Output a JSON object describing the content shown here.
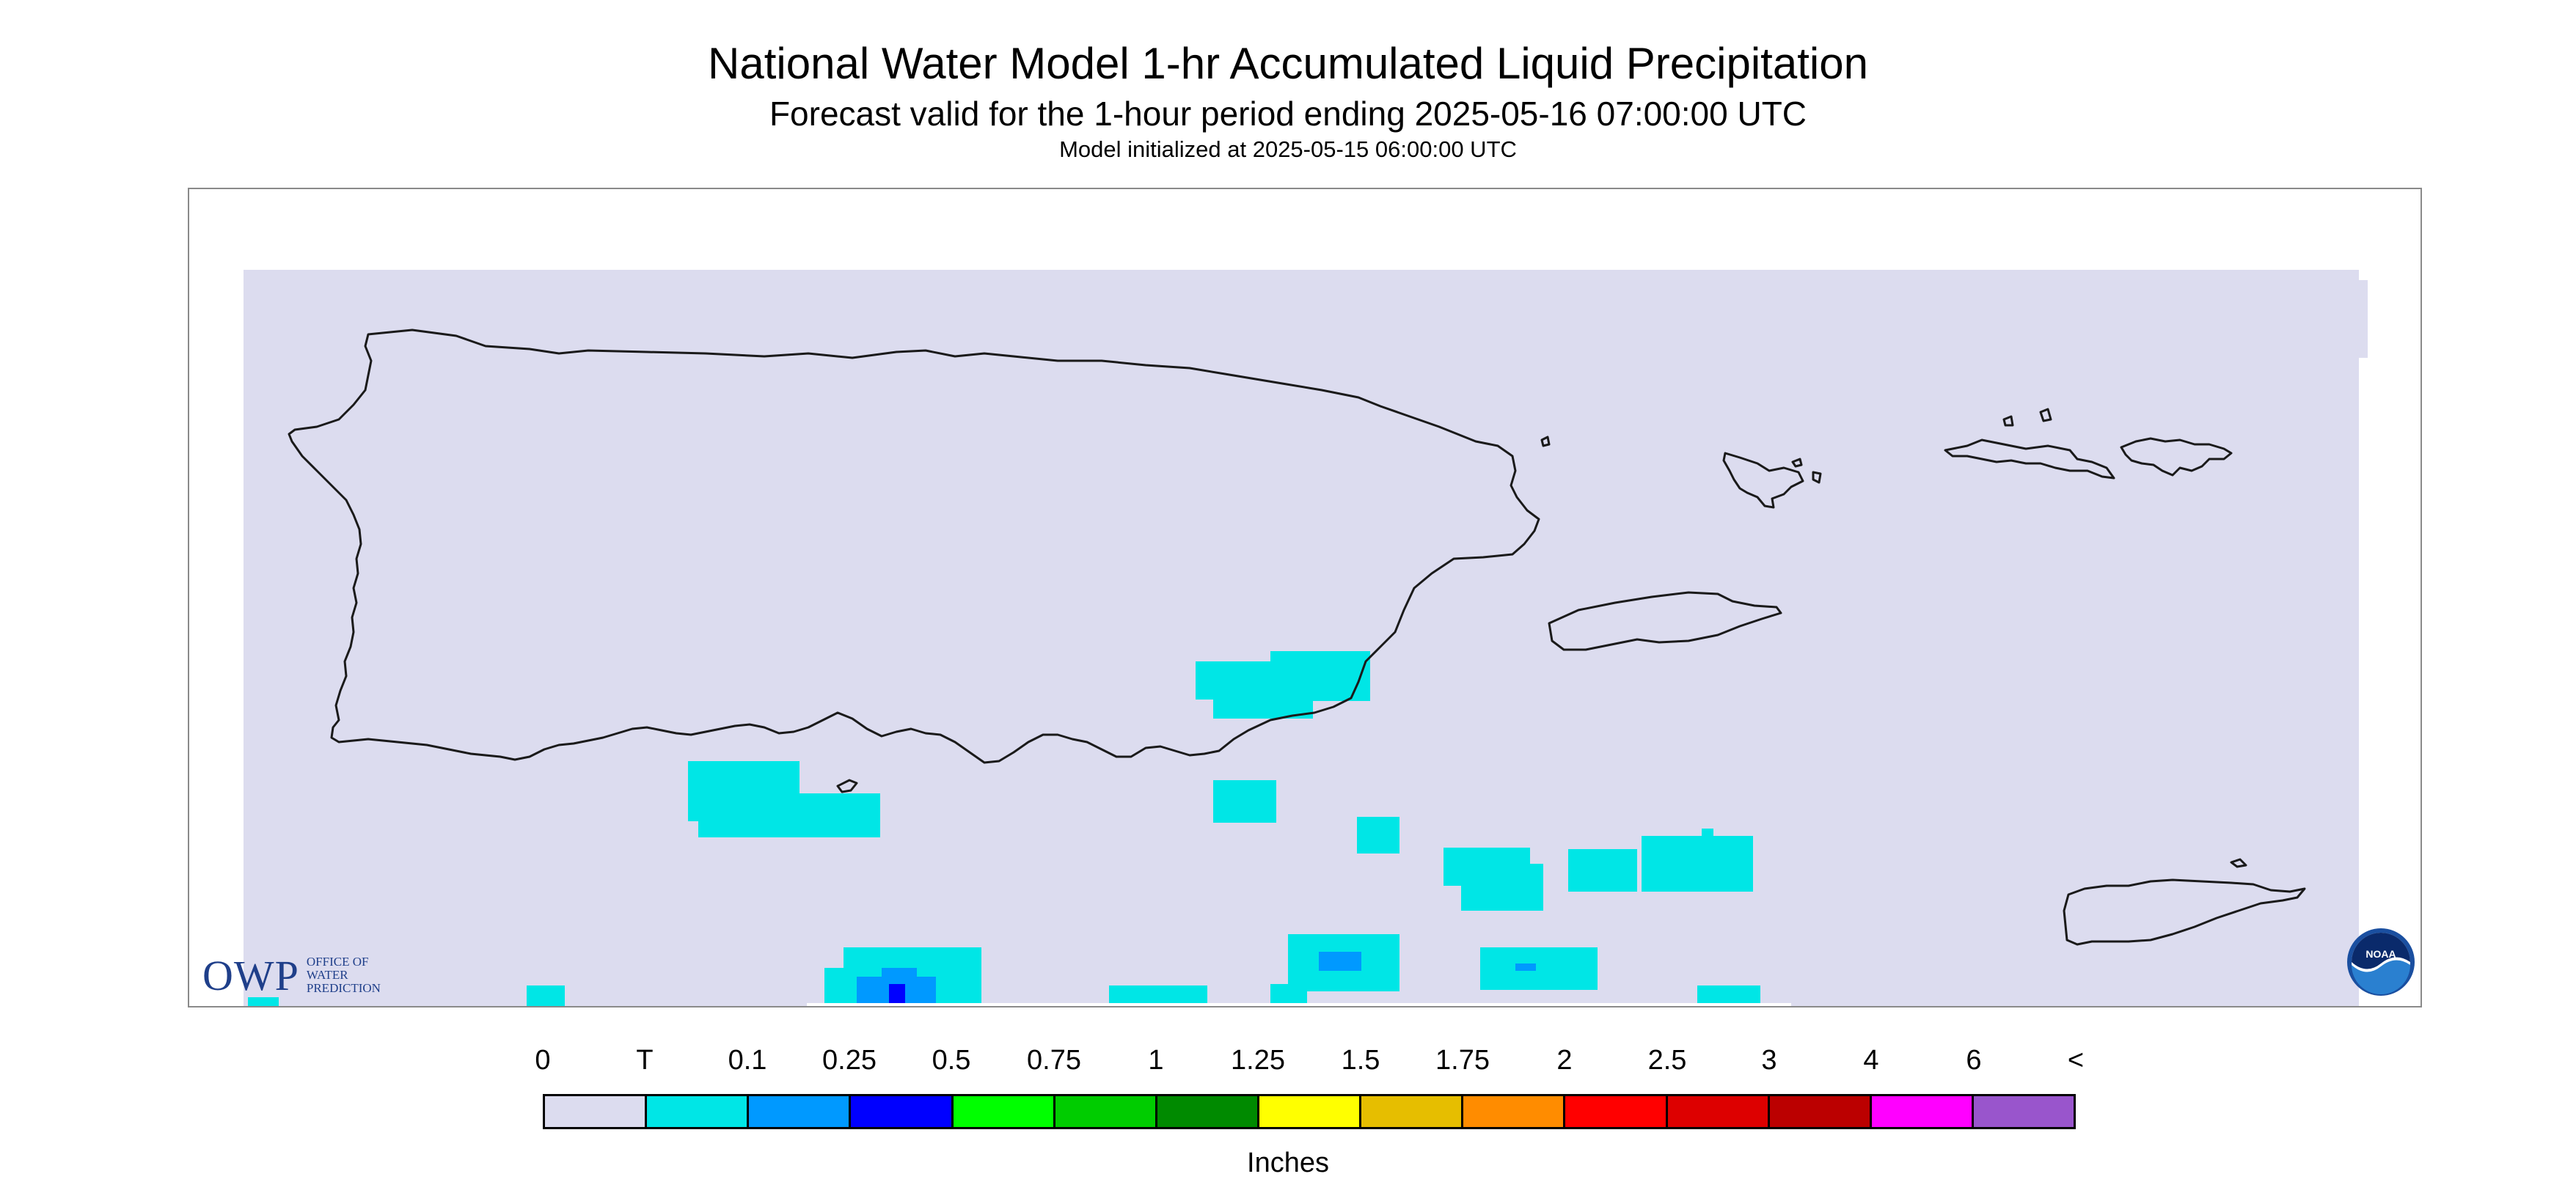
{
  "header": {
    "title": "National Water Model 1-hr Accumulated Liquid Precipitation",
    "subtitle": "Forecast valid for the 1-hour period ending 2025-05-16 07:00:00 UTC",
    "init": "Model initialized at 2025-05-15 06:00:00 UTC"
  },
  "logos": {
    "owp_letters": "OWP",
    "owp_name": [
      "OFFICE OF",
      "WATER",
      "PREDICTION"
    ],
    "noaa_letters": "NOAA"
  },
  "colors": {
    "background": "#dcdcef",
    "coastline": "#1a1a1a"
  },
  "legend": {
    "title": "Inches",
    "labels": [
      "0",
      "T",
      "0.1",
      "0.25",
      "0.5",
      "0.75",
      "1",
      "1.25",
      "1.5",
      "1.75",
      "2",
      "2.5",
      "3",
      "4",
      "6",
      "<"
    ],
    "colors": [
      "#dcdcef",
      "#00e6e6",
      "#0099ff",
      "#0000ff",
      "#00ff00",
      "#00cc00",
      "#008a00",
      "#ffff00",
      "#e6be00",
      "#ff8c00",
      "#ff0000",
      "#dd0000",
      "#bb0000",
      "#ff00ff",
      "#9955cc"
    ]
  }
}
